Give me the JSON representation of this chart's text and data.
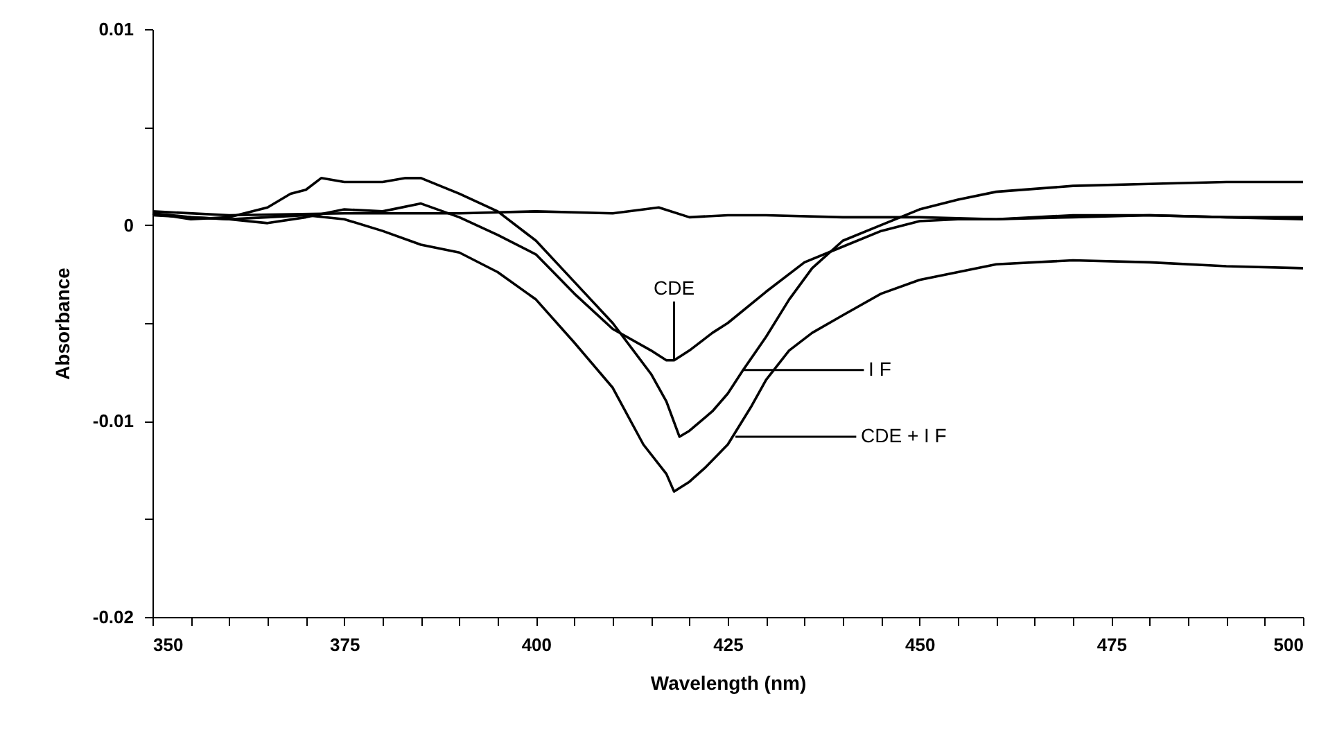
{
  "chart_data": {
    "type": "line",
    "xlabel": "Wavelength (nm)",
    "ylabel": "Absorbance",
    "xlim": [
      350,
      500
    ],
    "ylim": [
      -0.02,
      0.01
    ],
    "xticks": [
      350,
      {
        "value": 355,
        "label": null
      },
      {
        "value": 360,
        "label": null
      },
      {
        "value": 365,
        "label": null
      },
      {
        "value": 370,
        "label": null
      },
      375,
      {
        "value": 380,
        "label": null
      },
      {
        "value": 385,
        "label": null
      },
      {
        "value": 390,
        "label": null
      },
      {
        "value": 395,
        "label": null
      },
      400,
      {
        "value": 405,
        "label": null
      },
      {
        "value": 410,
        "label": null
      },
      {
        "value": 415,
        "label": null
      },
      {
        "value": 420,
        "label": null
      },
      425,
      {
        "value": 430,
        "label": null
      },
      {
        "value": 435,
        "label": null
      },
      {
        "value": 440,
        "label": null
      },
      {
        "value": 445,
        "label": null
      },
      450,
      {
        "value": 455,
        "label": null
      },
      {
        "value": 460,
        "label": null
      },
      {
        "value": 465,
        "label": null
      },
      {
        "value": 470,
        "label": null
      },
      475,
      {
        "value": 480,
        "label": null
      },
      {
        "value": 485,
        "label": null
      },
      {
        "value": 490,
        "label": null
      },
      {
        "value": 495,
        "label": null
      },
      500
    ],
    "yticks": [
      -0.02,
      {
        "value": -0.015,
        "label": null
      },
      -0.01,
      {
        "value": -0.005,
        "label": null
      },
      0,
      {
        "value": 0.005,
        "label": null
      },
      0.01
    ],
    "grid": false,
    "marker": "none",
    "line_style": "solid",
    "series": [
      {
        "color": "#000000",
        "x": [
          350,
          360,
          375,
          390,
          400,
          410,
          416,
          420,
          425,
          430,
          440,
          450,
          460,
          470,
          480,
          490,
          500
        ],
        "values": [
          0.0007,
          0.0005,
          0.0006,
          0.0006,
          0.0007,
          0.0006,
          0.0009,
          0.0004,
          0.0005,
          0.0005,
          0.0004,
          0.0004,
          0.0003,
          0.0004,
          0.0005,
          0.0004,
          0.0004
        ]
      },
      {
        "color": "#000000",
        "x": [
          350,
          360,
          365,
          370,
          375,
          380,
          385,
          390,
          395,
          400,
          405,
          410,
          415,
          417,
          418,
          420,
          423,
          425,
          430,
          435,
          440,
          445,
          450,
          455,
          460,
          470,
          480,
          490,
          500
        ],
        "values": [
          0.0005,
          0.0003,
          0.0001,
          0.0004,
          0.0008,
          0.0007,
          0.0011,
          0.0004,
          -0.0005,
          -0.0015,
          -0.0035,
          -0.0053,
          -0.0064,
          -0.0069,
          -0.0069,
          -0.0064,
          -0.0055,
          -0.005,
          -0.0034,
          -0.0019,
          -0.0011,
          -0.0003,
          0.0002,
          0.0003,
          0.0003,
          0.0005,
          0.0005,
          0.0004,
          0.0003
        ]
      },
      {
        "color": "#000000",
        "x": [
          350,
          355,
          360,
          365,
          368,
          370,
          372,
          375,
          380,
          383,
          385,
          390,
          395,
          400,
          405,
          410,
          415,
          417,
          418.7,
          420,
          423,
          425,
          427,
          430,
          433,
          436,
          440,
          445,
          450,
          455,
          460,
          470,
          480,
          490,
          500
        ],
        "values": [
          0.0006,
          0.0003,
          0.0004,
          0.0009,
          0.0016,
          0.0018,
          0.0024,
          0.0022,
          0.0022,
          0.0024,
          0.0024,
          0.0016,
          0.0007,
          -0.0008,
          -0.0029,
          -0.005,
          -0.0076,
          -0.009,
          -0.0108,
          -0.0105,
          -0.0095,
          -0.0086,
          -0.0074,
          -0.0057,
          -0.0038,
          -0.0022,
          -0.0008,
          0,
          0.0008,
          0.0013,
          0.0017,
          0.002,
          0.0021,
          0.0022,
          0.0022
        ]
      },
      {
        "color": "#000000",
        "x": [
          350,
          355,
          360,
          365,
          370,
          375,
          380,
          385,
          390,
          395,
          400,
          405,
          410,
          414,
          417,
          418,
          420,
          422,
          425,
          428,
          430,
          433,
          436,
          440,
          445,
          450,
          455,
          460,
          470,
          480,
          490,
          500
        ],
        "values": [
          0.0006,
          0.0004,
          0.0003,
          0.0004,
          0.0005,
          0.0003,
          -0.0003,
          -0.001,
          -0.0014,
          -0.0024,
          -0.0038,
          -0.006,
          -0.0083,
          -0.0112,
          -0.0127,
          -0.0136,
          -0.0131,
          -0.0124,
          -0.0112,
          -0.0093,
          -0.0079,
          -0.0064,
          -0.0055,
          -0.0046,
          -0.0035,
          -0.0028,
          -0.0024,
          -0.002,
          -0.0018,
          -0.0019,
          -0.0021,
          -0.0022
        ]
      }
    ],
    "annotations": [
      {
        "text": "CDE",
        "x": 418,
        "y": -0.0069
      },
      {
        "text": "I F",
        "x": 427,
        "y": -0.0074
      },
      {
        "text": "CDE + I F",
        "x": 426,
        "y": -0.0108
      }
    ]
  }
}
